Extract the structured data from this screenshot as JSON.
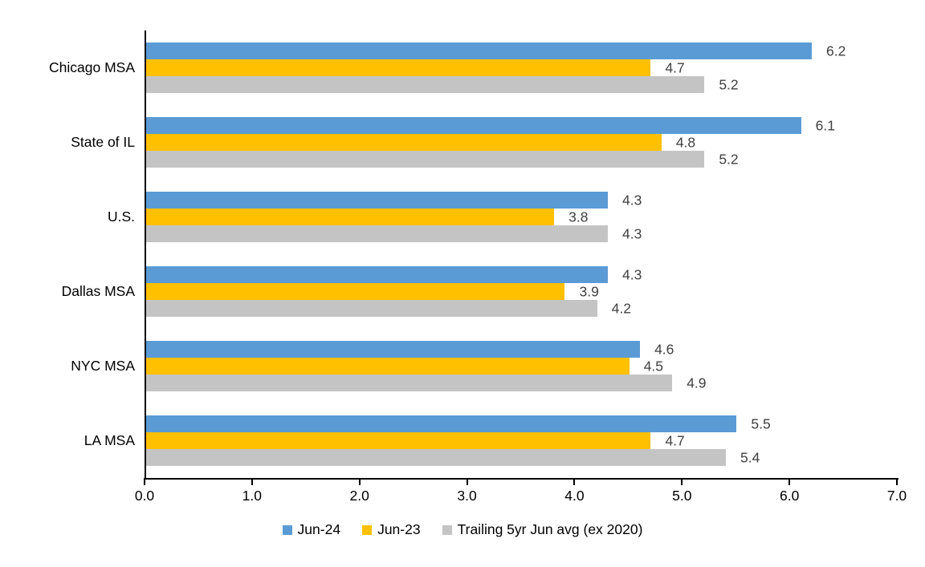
{
  "chart_data": {
    "type": "bar",
    "orientation": "horizontal",
    "title": "",
    "categories": [
      "Chicago MSA",
      "State of IL",
      "U.S.",
      "Dallas MSA",
      "NYC MSA",
      "LA MSA"
    ],
    "series": [
      {
        "name": "Jun-24",
        "color": "#5B9BD5",
        "values": [
          6.2,
          6.1,
          4.3,
          4.3,
          4.6,
          5.5
        ]
      },
      {
        "name": "Jun-23",
        "color": "#FFC000",
        "values": [
          4.7,
          4.8,
          3.8,
          3.9,
          4.5,
          4.7
        ]
      },
      {
        "name": "Trailing 5yr Jun avg (ex 2020)",
        "color": "#C4C4C4",
        "values": [
          5.2,
          5.2,
          4.3,
          4.2,
          4.9,
          5.4
        ]
      }
    ],
    "xlim": [
      0,
      7
    ],
    "xtick_labels": [
      "0.0",
      "1.0",
      "2.0",
      "3.0",
      "4.0",
      "5.0",
      "6.0",
      "7.0"
    ],
    "value_labels_shown": true,
    "value_label_decimals": 1,
    "grid": false,
    "legend_position": "bottom",
    "colors": {
      "axis_line": "#000000",
      "category_text": "#000000",
      "tick_text": "#000000",
      "value_label_text": "#404040",
      "background": "#ffffff"
    }
  }
}
